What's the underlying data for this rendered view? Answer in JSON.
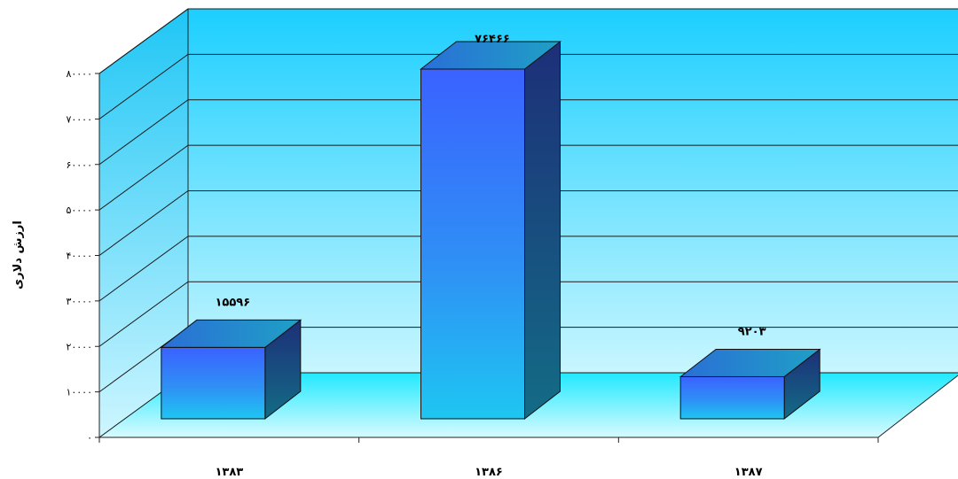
{
  "chart_data": {
    "type": "bar",
    "style": "3d-column",
    "categories": [
      "۱۳۸۳",
      "۱۳۸۶",
      "۱۳۸۷"
    ],
    "values": [
      15596,
      76466,
      9203
    ],
    "value_labels": [
      "۱۵۵۹۶",
      "۷۶۴۶۶",
      "۹۲۰۳"
    ],
    "ylabel": "ارزش دلاری",
    "ylim": [
      0,
      80000
    ],
    "yticks": [
      0,
      10000,
      20000,
      30000,
      40000,
      50000,
      60000,
      70000,
      80000
    ],
    "ytick_labels": [
      "۰",
      "۱۰۰۰۰",
      "۲۰۰۰۰",
      "۳۰۰۰۰",
      "۴۰۰۰۰",
      "۵۰۰۰۰",
      "۶۰۰۰۰",
      "۷۰۰۰۰",
      "۸۰۰۰۰"
    ],
    "grid": true,
    "legend": "none",
    "colors": {
      "wall_top": "#1ccfff",
      "wall_bottom": "#c8f6ff",
      "floor": "#2af0ff",
      "bar_front": "#3a78f2",
      "bar_top": "#2a8fd0",
      "bar_side": "#1e3f86",
      "gridline": "#1a1a1a"
    }
  }
}
